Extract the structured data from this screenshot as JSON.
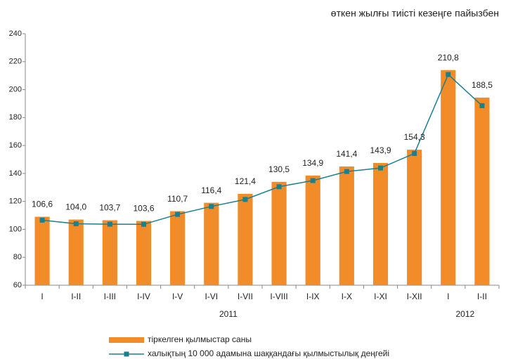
{
  "chart_data": {
    "type": "bar-line",
    "subtitle": "өткен жылғы тиісті кезеңге пайызбен",
    "categories": [
      "I",
      "I-II",
      "I-III",
      "I-IV",
      "I-V",
      "I-VI",
      "I-VII",
      "I-VIII",
      "I-IX",
      "I-X",
      "I-XI",
      "I-XII",
      "I",
      "I-II"
    ],
    "groups": [
      {
        "label": "2011",
        "count": 12
      },
      {
        "label": "2012",
        "count": 2
      }
    ],
    "series": [
      {
        "name": "тіркелген қылмыстар саны",
        "type": "bar",
        "color": "#f28c28",
        "values": [
          109,
          107,
          106.5,
          106,
          113,
          119,
          125.4,
          134,
          138.5,
          145,
          147.5,
          157,
          214,
          194.3
        ]
      },
      {
        "name": "халықтың 10 000 адамына шаққандағы қылмыстылық деңгейі",
        "type": "line",
        "color": "#1a7f8e",
        "values": [
          106.6,
          104.0,
          103.7,
          103.6,
          110.7,
          116.4,
          121.4,
          130.5,
          134.9,
          141.4,
          143.9,
          154.3,
          210.8,
          188.5
        ],
        "value_labels": [
          "106,6",
          "104,0",
          "103,7",
          "103,6",
          "110,7",
          "116,4",
          "121,4",
          "130,5",
          "134,9",
          "141,4",
          "143,9",
          "154,3",
          "210,8",
          "188,5"
        ]
      }
    ],
    "ylim": [
      60,
      240
    ],
    "yticks": [
      60,
      80,
      100,
      120,
      140,
      160,
      180,
      200,
      220,
      240
    ],
    "grid": false
  }
}
